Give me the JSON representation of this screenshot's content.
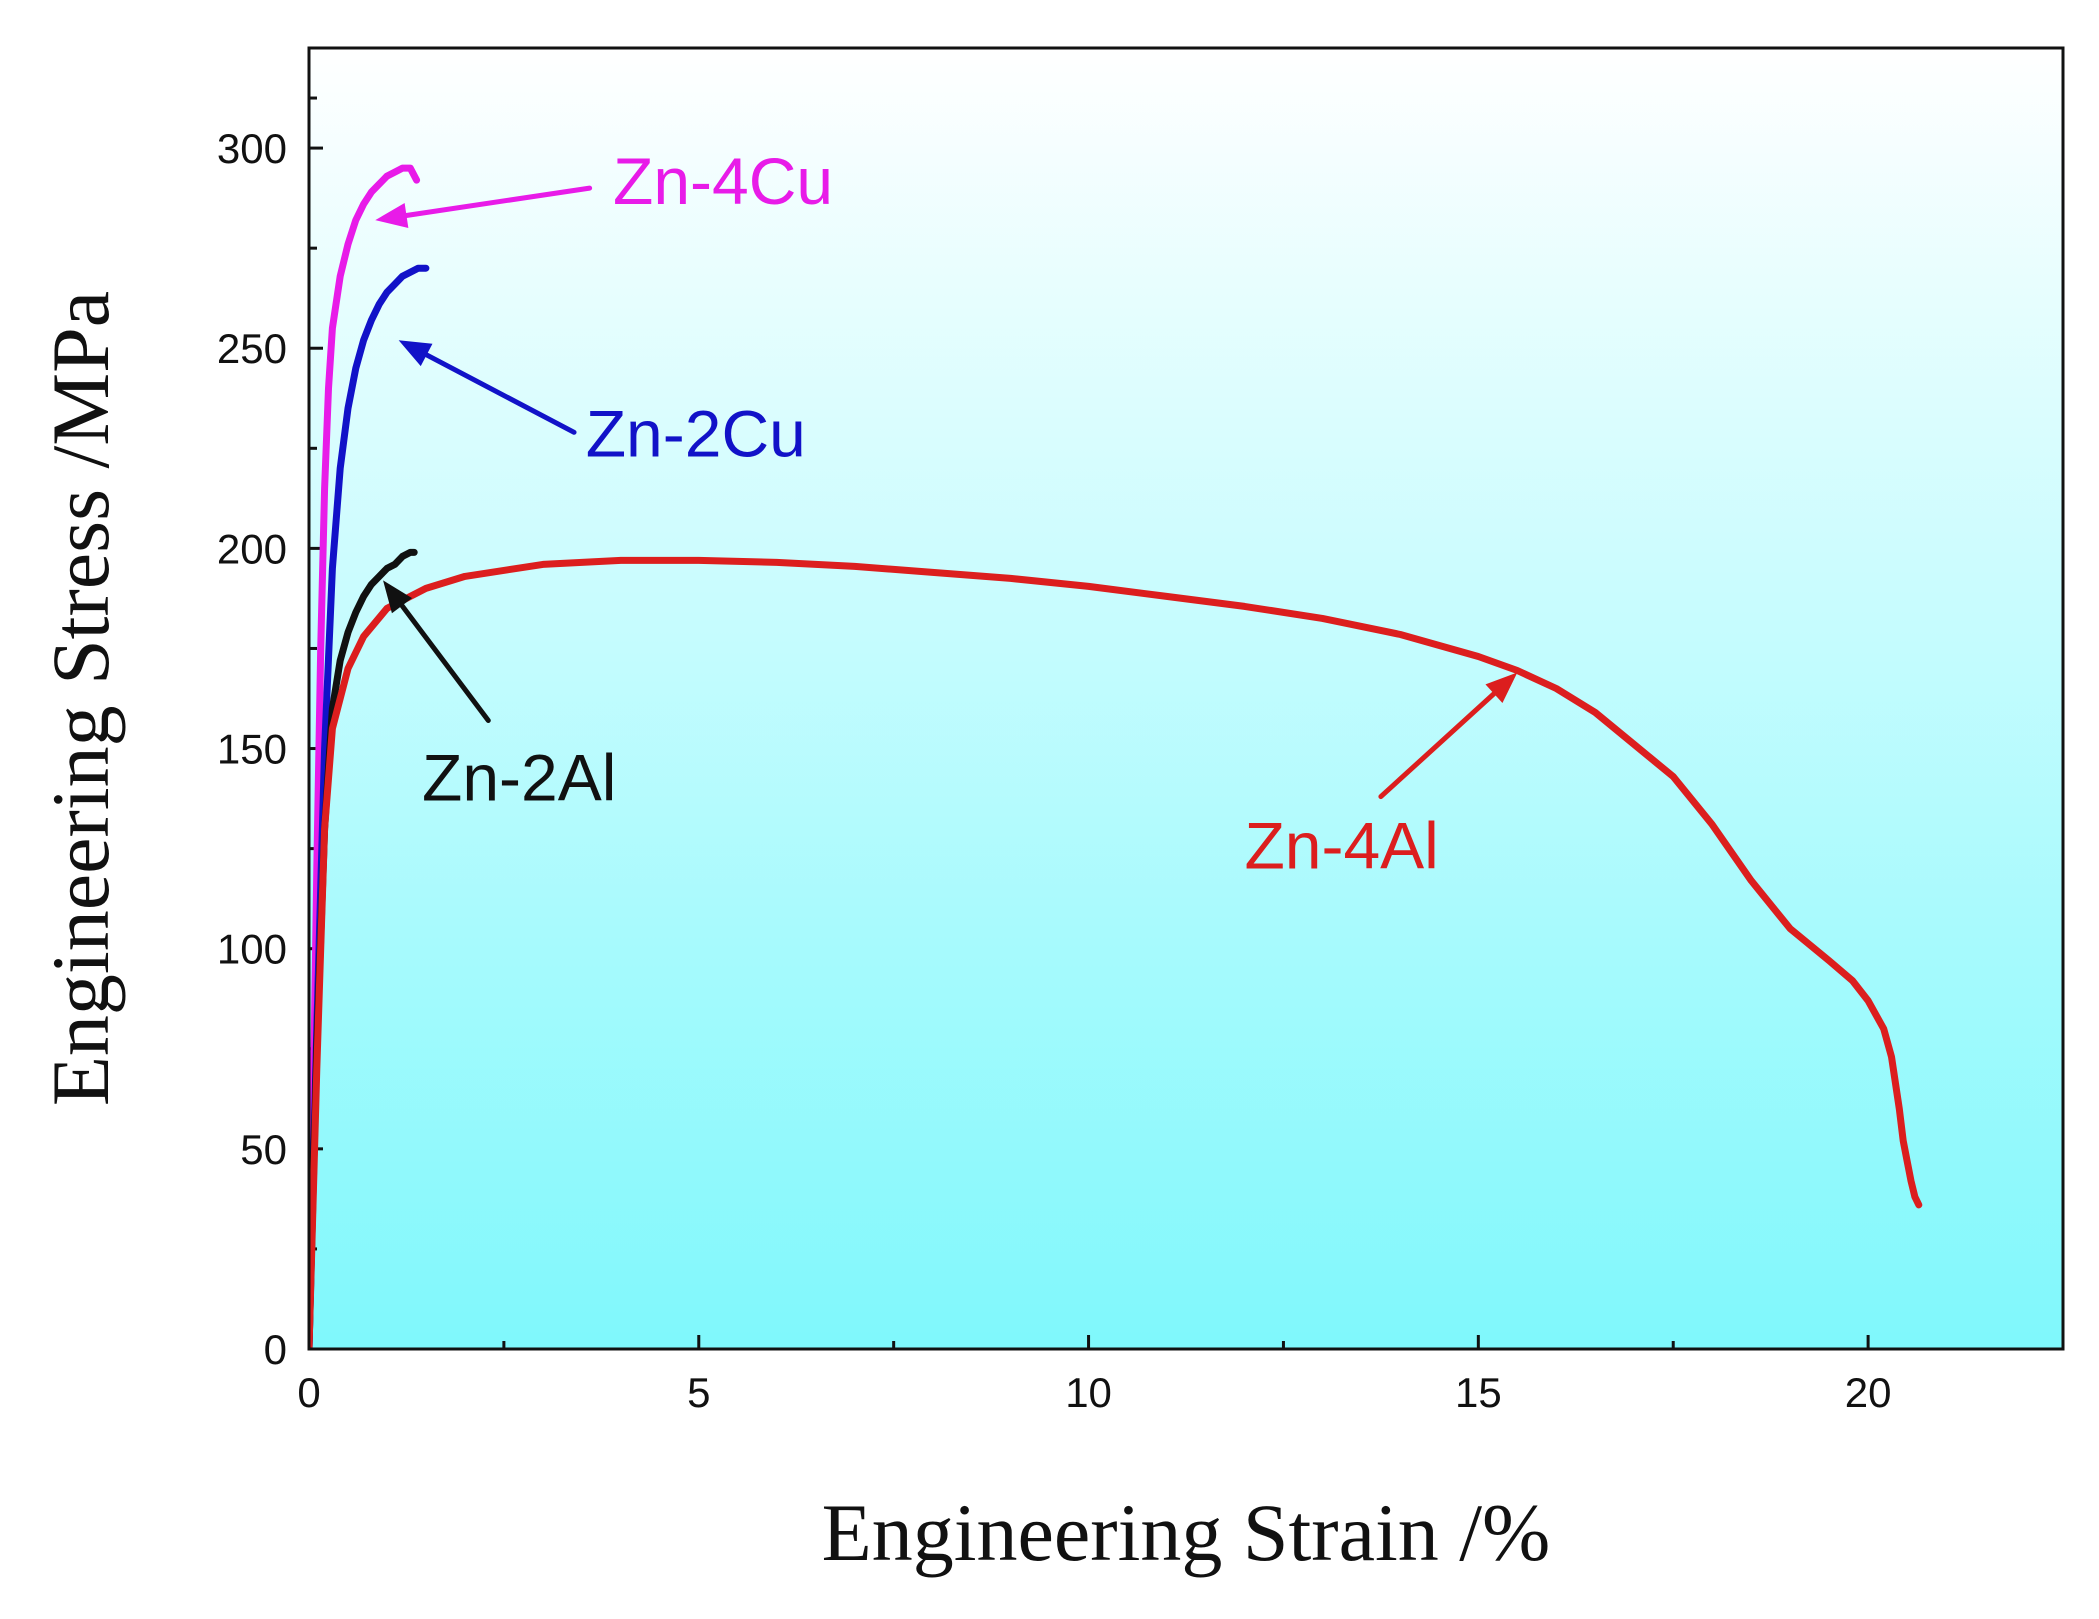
{
  "chart_data": {
    "type": "line",
    "title": "",
    "xlabel": "Engineering Strain /%",
    "ylabel": "Engineering Stress /MPa",
    "xlim": [
      0,
      22.5
    ],
    "ylim": [
      0,
      325
    ],
    "x_ticks": [
      0,
      5,
      10,
      15,
      20
    ],
    "y_ticks": [
      0,
      50,
      100,
      150,
      200,
      250,
      300
    ],
    "grid": false,
    "background": {
      "top": "#ffffff",
      "bottom": "#7ff8fc"
    },
    "series": [
      {
        "name": "Zn-4Cu",
        "color": "#e81be8",
        "x": [
          0,
          0.05,
          0.1,
          0.15,
          0.2,
          0.25,
          0.3,
          0.4,
          0.5,
          0.6,
          0.7,
          0.8,
          0.9,
          1.0,
          1.1,
          1.2,
          1.3,
          1.38
        ],
        "y": [
          0,
          55,
          120,
          175,
          215,
          240,
          255,
          268,
          276,
          282,
          286,
          289,
          291,
          293,
          294,
          295,
          295,
          292
        ],
        "annotation": {
          "text": "Zn-4Cu",
          "label_x": 3.9,
          "label_y": 286,
          "arrow_tail_x": 3.6,
          "arrow_tail_y": 290,
          "arrow_head_x": 0.85,
          "arrow_head_y": 282
        }
      },
      {
        "name": "Zn-2Cu",
        "color": "#1212c8",
        "x": [
          0,
          0.1,
          0.2,
          0.3,
          0.4,
          0.5,
          0.6,
          0.7,
          0.8,
          0.9,
          1.0,
          1.1,
          1.2,
          1.3,
          1.4,
          1.5
        ],
        "y": [
          0,
          80,
          150,
          195,
          220,
          235,
          245,
          252,
          257,
          261,
          264,
          266,
          268,
          269,
          270,
          270
        ],
        "annotation": {
          "text": "Zn-2Cu",
          "label_x": 3.55,
          "label_y": 223,
          "arrow_tail_x": 3.4,
          "arrow_tail_y": 229,
          "arrow_head_x": 1.15,
          "arrow_head_y": 252
        }
      },
      {
        "name": "Zn-2Al",
        "color": "#111111",
        "x": [
          0,
          0.1,
          0.2,
          0.3,
          0.4,
          0.5,
          0.6,
          0.7,
          0.8,
          0.9,
          1.0,
          1.1,
          1.2,
          1.3,
          1.35
        ],
        "y": [
          0,
          75,
          130,
          160,
          172,
          179,
          184,
          188,
          191,
          193,
          195,
          196,
          198,
          199,
          199
        ],
        "annotation": {
          "text": "Zn-2Al",
          "label_x": 1.45,
          "label_y": 137,
          "arrow_tail_x": 2.3,
          "arrow_tail_y": 157,
          "arrow_head_x": 0.95,
          "arrow_head_y": 192
        }
      },
      {
        "name": "Zn-4Al",
        "color": "#dc1e1e",
        "x": [
          0,
          0.1,
          0.2,
          0.3,
          0.5,
          0.7,
          1.0,
          1.5,
          2.0,
          3.0,
          4.0,
          5.0,
          6.0,
          7.0,
          8.0,
          9.0,
          10.0,
          11.0,
          12.0,
          13.0,
          14.0,
          15.0,
          15.5,
          16.0,
          16.5,
          17.0,
          17.5,
          18.0,
          18.5,
          19.0,
          19.5,
          19.8,
          20.0,
          20.2,
          20.3,
          20.4,
          20.45,
          20.5,
          20.55,
          20.6,
          20.65
        ],
        "y": [
          0,
          70,
          130,
          155,
          170,
          178,
          185,
          190,
          193,
          196,
          197,
          197,
          196.5,
          195.5,
          194,
          192.5,
          190.5,
          188,
          185.5,
          182.5,
          178.5,
          173,
          169.5,
          165,
          159,
          151,
          143,
          131,
          117,
          105,
          97,
          92,
          87,
          80,
          73,
          60,
          52,
          47,
          42,
          38,
          36
        ],
        "annotation": {
          "text": "Zn-4Al",
          "label_x": 12.0,
          "label_y": 120,
          "arrow_tail_x": 13.75,
          "arrow_tail_y": 138,
          "arrow_head_x": 15.5,
          "arrow_head_y": 169
        }
      }
    ]
  }
}
